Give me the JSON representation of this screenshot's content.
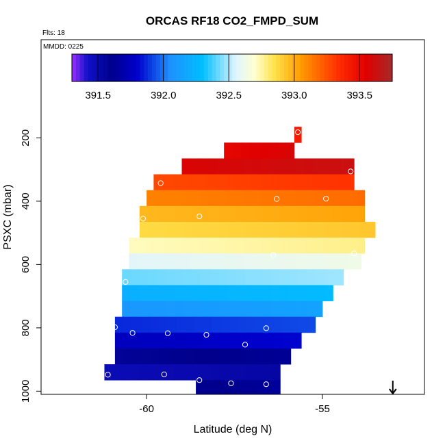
{
  "chart_data": {
    "type": "heatmap",
    "title": "ORCAS RF18 CO2_FMPD_SUM",
    "note_flts": "Flts: 18",
    "note_date": "MMDD: 0225",
    "xlabel": "Latitude (deg N)",
    "ylabel": "PSXC (mbar)",
    "xlim": [
      -63,
      -52.1
    ],
    "ylim": [
      1010,
      -110
    ],
    "y_reversed": true,
    "x_ticks": [
      -60,
      -55
    ],
    "x_tick_labels": [
      "-60",
      "-55"
    ],
    "y_ticks": [
      200,
      400,
      600,
      800,
      1000
    ],
    "y_tick_labels": [
      "200",
      "400",
      "600",
      "800",
      "1000"
    ],
    "colorbar": {
      "min": 391.3,
      "max": 393.75,
      "ticks": [
        391.5,
        392.0,
        392.5,
        393.0,
        393.5
      ],
      "tick_labels": [
        "391.5",
        "392.0",
        "392.5",
        "393.0",
        "393.5"
      ],
      "stops": [
        {
          "v": 391.3,
          "c": "#9a30ff"
        },
        {
          "v": 391.42,
          "c": "#1010c8"
        },
        {
          "v": 391.6,
          "c": "#00008c"
        },
        {
          "v": 391.8,
          "c": "#0000cd"
        },
        {
          "v": 392.05,
          "c": "#1e90ff"
        },
        {
          "v": 392.3,
          "c": "#00bfff"
        },
        {
          "v": 392.55,
          "c": "#dff4ff"
        },
        {
          "v": 392.7,
          "c": "#ffffd0"
        },
        {
          "v": 392.85,
          "c": "#ffe14a"
        },
        {
          "v": 393.05,
          "c": "#ff9c00"
        },
        {
          "v": 393.35,
          "c": "#ff2a00"
        },
        {
          "v": 393.55,
          "c": "#e00000"
        },
        {
          "v": 393.75,
          "c": "#a52a2a"
        }
      ]
    },
    "bands": [
      {
        "p0": 165,
        "p1": 215,
        "x0": -55.8,
        "x1": -55.6,
        "v": 393.45
      },
      {
        "p0": 215,
        "p1": 265,
        "x0": -57.8,
        "x1": -55.8,
        "v": 393.55
      },
      {
        "p0": 265,
        "p1": 315,
        "x0": -59.0,
        "x1": -54.1,
        "v": 393.6
      },
      {
        "p0": 315,
        "p1": 365,
        "x0": -59.8,
        "x1": -54.1,
        "v": 393.3
      },
      {
        "p0": 365,
        "p1": 415,
        "x0": -60.0,
        "x1": -53.8,
        "v": 393.15
      },
      {
        "p0": 415,
        "p1": 465,
        "x0": -60.2,
        "x1": -53.8,
        "v": 393.0
      },
      {
        "p0": 465,
        "p1": 515,
        "x0": -60.2,
        "x1": -53.5,
        "v": 392.9
      },
      {
        "p0": 515,
        "p1": 565,
        "x0": -60.5,
        "x1": -53.8,
        "v": 392.75
      },
      {
        "p0": 565,
        "p1": 615,
        "x0": -60.5,
        "x1": -53.9,
        "v": 392.6
      },
      {
        "p0": 615,
        "p1": 665,
        "x0": -60.7,
        "x1": -54.4,
        "v": 392.45
      },
      {
        "p0": 665,
        "p1": 715,
        "x0": -60.7,
        "x1": -54.7,
        "v": 392.25
      },
      {
        "p0": 715,
        "p1": 765,
        "x0": -60.7,
        "x1": -55.0,
        "v": 392.12
      },
      {
        "p0": 765,
        "p1": 815,
        "x0": -60.9,
        "x1": -55.2,
        "v": 391.9
      },
      {
        "p0": 815,
        "p1": 865,
        "x0": -60.9,
        "x1": -55.6,
        "v": 391.78
      },
      {
        "p0": 865,
        "p1": 915,
        "x0": -60.9,
        "x1": -55.9,
        "v": 391.6
      },
      {
        "p0": 915,
        "p1": 965,
        "x0": -61.2,
        "x1": -56.2,
        "v": 391.5
      },
      {
        "p0": 965,
        "p1": 1010,
        "x0": -58.6,
        "x1": -56.2,
        "v": 391.62
      }
    ],
    "points": [
      {
        "lat": -55.7,
        "p": 182
      },
      {
        "lat": -54.2,
        "p": 306
      },
      {
        "lat": -59.6,
        "p": 343
      },
      {
        "lat": -56.3,
        "p": 393
      },
      {
        "lat": -54.9,
        "p": 392
      },
      {
        "lat": -60.1,
        "p": 455
      },
      {
        "lat": -58.5,
        "p": 448
      },
      {
        "lat": -53.4,
        "p": 468
      },
      {
        "lat": -56.4,
        "p": 570
      },
      {
        "lat": -54.1,
        "p": 565
      },
      {
        "lat": -60.6,
        "p": 655
      },
      {
        "lat": -60.9,
        "p": 798
      },
      {
        "lat": -60.4,
        "p": 816
      },
      {
        "lat": -59.4,
        "p": 817
      },
      {
        "lat": -58.3,
        "p": 822
      },
      {
        "lat": -56.6,
        "p": 801
      },
      {
        "lat": -57.2,
        "p": 853
      },
      {
        "lat": -61.1,
        "p": 948
      },
      {
        "lat": -59.5,
        "p": 947
      },
      {
        "lat": -58.5,
        "p": 965
      },
      {
        "lat": -57.6,
        "p": 975
      },
      {
        "lat": -56.6,
        "p": 978
      }
    ],
    "arrow_lat": -53.0
  },
  "colors": {
    "frame": "#000000",
    "point_stroke": "#ffffff",
    "background": "#ffffff"
  }
}
